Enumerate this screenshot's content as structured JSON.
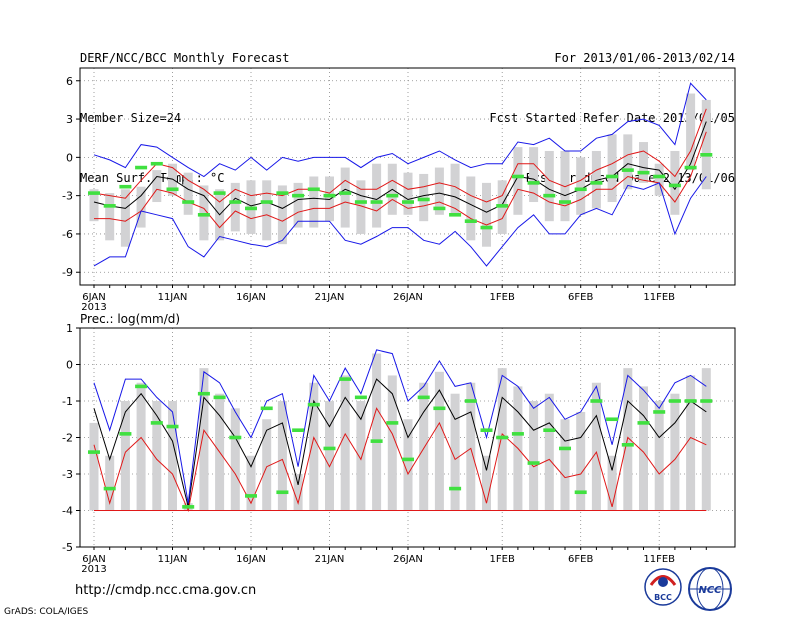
{
  "header": {
    "title": "DERF/NCC/BCC Monthly Forecast",
    "member": "Member Size=24",
    "variable": "Mean Surf. Temp.: °C",
    "period": "For 2013/01/06-2013/02/14",
    "started": "Fcst Started Refer Date 2013/01/05",
    "produced": "Fcst Produced Date 2013/01/06"
  },
  "footer": {
    "url": "http://cmdp.ncc.cma.gov.cn",
    "credit": "GrADS: COLA/IGES",
    "logo_bcc_text": "BCC",
    "logo_ncc_text": "NCC"
  },
  "colors": {
    "bar": "#d2d2d4",
    "green": "#40e040",
    "black": "#000000",
    "red": "#e01818",
    "blue": "#1818e8",
    "grid": "#888888"
  },
  "chart_data": [
    {
      "type": "box",
      "title": "Mean Surf. Temp.: °C",
      "xlabel": "",
      "ylabel": "°C",
      "ylim": [
        -10,
        7
      ],
      "yticks": [
        6,
        3,
        0,
        -3,
        -6,
        -9
      ],
      "x_start_label": "6JAN",
      "x_start_year": "2013",
      "xtick_labels": [
        {
          "day": 1,
          "label": "6JAN"
        },
        {
          "day": 6,
          "label": "11JAN"
        },
        {
          "day": 11,
          "label": "16JAN"
        },
        {
          "day": 16,
          "label": "21JAN"
        },
        {
          "day": 21,
          "label": "26JAN"
        },
        {
          "day": 27,
          "label": "1FEB"
        },
        {
          "day": 32,
          "label": "6FEB"
        },
        {
          "day": 37,
          "label": "11FEB"
        }
      ],
      "days": 40,
      "bar_top": [
        -2.5,
        -2.8,
        -2.5,
        -2.3,
        -1.0,
        -0.5,
        -1.2,
        -2.2,
        -2.5,
        -2.0,
        -1.8,
        -1.8,
        -2.2,
        -2.0,
        -1.5,
        -1.5,
        -0.8,
        -1.8,
        -0.5,
        -0.5,
        -1.2,
        -1.3,
        -0.8,
        -0.5,
        -1.5,
        -2.0,
        -1.8,
        0.8,
        0.8,
        0.5,
        0.5,
        0.0,
        0.5,
        1.8,
        1.8,
        1.2,
        -0.5,
        0.5,
        5.0,
        4.5
      ],
      "bar_bottom": [
        -5.0,
        -6.5,
        -7.0,
        -5.5,
        -3.5,
        -3.0,
        -4.5,
        -6.5,
        -6.5,
        -5.8,
        -6.0,
        -6.5,
        -6.8,
        -5.5,
        -5.5,
        -5.0,
        -5.5,
        -6.0,
        -5.5,
        -4.5,
        -4.5,
        -5.0,
        -4.5,
        -4.5,
        -6.5,
        -7.0,
        -6.0,
        -4.5,
        -3.5,
        -5.0,
        -5.0,
        -4.5,
        -4.0,
        -3.5,
        -2.5,
        -2.0,
        -3.0,
        -4.5,
        -1.0,
        -2.5
      ],
      "series": [
        {
          "name": "ensemble mean",
          "color": "black",
          "values": [
            -3.5,
            -3.8,
            -4.0,
            -3.0,
            -1.5,
            -1.7,
            -2.5,
            -3.0,
            -4.5,
            -3.2,
            -3.8,
            -3.5,
            -4.0,
            -3.3,
            -3.2,
            -3.3,
            -2.5,
            -3.0,
            -3.3,
            -2.5,
            -3.3,
            -3.0,
            -2.8,
            -3.1,
            -3.7,
            -4.3,
            -3.7,
            -1.5,
            -1.7,
            -2.5,
            -3.0,
            -2.5,
            -1.8,
            -1.5,
            -0.5,
            -0.8,
            -1.0,
            -2.5,
            -0.5,
            2.8
          ]
        },
        {
          "name": "upper spread",
          "color": "red",
          "values": [
            -2.8,
            -3.0,
            -3.2,
            -1.8,
            -0.5,
            -0.8,
            -1.8,
            -2.5,
            -3.5,
            -2.5,
            -3.0,
            -2.8,
            -3.0,
            -2.5,
            -2.5,
            -2.8,
            -1.8,
            -2.5,
            -2.5,
            -1.8,
            -2.5,
            -2.3,
            -2.0,
            -2.3,
            -3.0,
            -3.5,
            -3.0,
            -0.5,
            -0.5,
            -1.8,
            -2.3,
            -1.8,
            -1.0,
            -0.5,
            0.2,
            0.5,
            -0.3,
            -1.5,
            0.5,
            3.8
          ]
        },
        {
          "name": "lower spread",
          "color": "red",
          "values": [
            -4.8,
            -4.8,
            -5.0,
            -4.2,
            -2.5,
            -2.8,
            -3.5,
            -4.0,
            -5.5,
            -4.2,
            -4.8,
            -4.5,
            -5.0,
            -4.3,
            -4.0,
            -4.0,
            -3.5,
            -3.8,
            -4.2,
            -3.3,
            -4.0,
            -3.8,
            -3.5,
            -4.0,
            -4.8,
            -5.3,
            -4.8,
            -2.5,
            -2.8,
            -3.5,
            -3.8,
            -3.3,
            -2.5,
            -2.5,
            -1.5,
            -1.8,
            -2.0,
            -3.5,
            -1.5,
            2.0
          ]
        },
        {
          "name": "maximum",
          "color": "blue",
          "values": [
            0.2,
            -0.2,
            -0.8,
            1.0,
            0.8,
            0.0,
            -0.8,
            -1.5,
            -0.5,
            -1.0,
            0.0,
            -1.0,
            0.0,
            -0.3,
            0.0,
            0.0,
            0.0,
            -0.8,
            0.0,
            0.3,
            -0.5,
            0.0,
            0.5,
            -0.2,
            -0.8,
            -0.5,
            -0.5,
            1.2,
            1.0,
            1.5,
            0.5,
            0.5,
            1.5,
            1.8,
            2.8,
            3.0,
            2.5,
            1.0,
            5.8,
            4.5
          ]
        },
        {
          "name": "minimum",
          "color": "blue",
          "values": [
            -8.5,
            -7.8,
            -7.8,
            -4.2,
            -4.5,
            -4.8,
            -7.0,
            -7.8,
            -6.2,
            -6.5,
            -6.8,
            -7.0,
            -6.5,
            -5.0,
            -5.0,
            -5.0,
            -6.5,
            -6.8,
            -6.2,
            -5.5,
            -5.5,
            -6.5,
            -6.8,
            -5.8,
            -7.0,
            -8.5,
            -7.0,
            -5.5,
            -4.5,
            -6.0,
            -6.0,
            -4.5,
            -4.0,
            -4.5,
            -2.2,
            -2.5,
            -2.0,
            -6.0,
            -3.2,
            -1.5
          ]
        },
        {
          "name": "observed/reference",
          "color": "green",
          "values": [
            -2.8,
            -3.8,
            -2.3,
            -0.8,
            -0.5,
            -2.5,
            -3.5,
            -4.5,
            -2.8,
            -3.5,
            -4.0,
            -3.5,
            -2.8,
            -3.0,
            -2.5,
            -3.0,
            -2.8,
            -3.5,
            -3.5,
            -3.0,
            -3.5,
            -3.3,
            -4.0,
            -4.5,
            -5.0,
            -5.5,
            -3.8,
            -1.5,
            -2.0,
            -3.0,
            -3.5,
            -2.5,
            -2.0,
            -1.5,
            -1.0,
            -1.2,
            -1.5,
            -2.2,
            -0.8,
            0.2
          ]
        }
      ]
    },
    {
      "type": "box",
      "title": "Prec.: log(mm/d)",
      "xlabel": "",
      "ylabel": "log(mm/d)",
      "ylim": [
        -5,
        1
      ],
      "yticks": [
        1,
        0,
        -1,
        -2,
        -3,
        -4,
        -5
      ],
      "x_start_label": "6JAN",
      "x_start_year": "2013",
      "xtick_labels": [
        {
          "day": 1,
          "label": "6JAN"
        },
        {
          "day": 6,
          "label": "11JAN"
        },
        {
          "day": 11,
          "label": "16JAN"
        },
        {
          "day": 16,
          "label": "21JAN"
        },
        {
          "day": 21,
          "label": "26JAN"
        },
        {
          "day": 27,
          "label": "1FEB"
        },
        {
          "day": 32,
          "label": "6FEB"
        },
        {
          "day": 37,
          "label": "11FEB"
        }
      ],
      "days": 40,
      "bar_top": [
        -1.6,
        -2.5,
        -1.0,
        -0.5,
        -1.0,
        -1.0,
        -3.8,
        -0.1,
        -0.8,
        -1.2,
        -2.5,
        -1.5,
        -1.0,
        -3.0,
        -0.5,
        -1.0,
        -0.3,
        -1.0,
        0.3,
        -0.3,
        -1.5,
        -0.5,
        -0.2,
        -0.8,
        -0.5,
        -2.5,
        -0.1,
        -0.6,
        -1.0,
        -0.8,
        -1.5,
        -1.3,
        -0.5,
        -2.5,
        -0.1,
        -0.6,
        -1.0,
        -0.8,
        -0.3,
        -0.1
      ],
      "bar_bottom": [
        -4,
        -4,
        -4,
        -4,
        -4,
        -4,
        -4,
        -4,
        -4,
        -4,
        -4,
        -4,
        -4,
        -4,
        -4,
        -4,
        -4,
        -4,
        -4,
        -4,
        -4,
        -4,
        -4,
        -4,
        -4,
        -4,
        -4,
        -4,
        -4,
        -4,
        -4,
        -4,
        -4,
        -4,
        -4,
        -4,
        -4,
        -4,
        -4,
        -4
      ],
      "series": [
        {
          "name": "ensemble mean",
          "color": "black",
          "values": [
            -1.2,
            -2.6,
            -1.3,
            -0.8,
            -1.4,
            -2.1,
            -3.9,
            -0.9,
            -1.4,
            -2.0,
            -2.8,
            -1.8,
            -1.6,
            -3.3,
            -1.0,
            -1.7,
            -0.9,
            -1.5,
            -0.4,
            -0.8,
            -2.0,
            -1.3,
            -0.7,
            -1.5,
            -1.3,
            -2.9,
            -0.9,
            -1.3,
            -1.8,
            -1.6,
            -2.1,
            -2.0,
            -1.4,
            -2.9,
            -1.0,
            -1.4,
            -2.0,
            -1.6,
            -1.0,
            -1.3
          ]
        },
        {
          "name": "lower spread",
          "color": "red",
          "values": [
            -2.2,
            -3.8,
            -2.4,
            -2.0,
            -2.6,
            -3.0,
            -4.0,
            -1.8,
            -2.4,
            -3.0,
            -3.8,
            -2.8,
            -2.6,
            -3.8,
            -2.0,
            -2.8,
            -1.9,
            -2.6,
            -1.2,
            -1.9,
            -3.0,
            -2.3,
            -1.6,
            -2.6,
            -2.3,
            -3.8,
            -1.9,
            -2.3,
            -2.8,
            -2.6,
            -3.1,
            -3.0,
            -2.4,
            -3.9,
            -2.0,
            -2.4,
            -3.0,
            -2.6,
            -2.0,
            -2.2
          ]
        },
        {
          "name": "maximum",
          "color": "blue",
          "values": [
            -0.5,
            -1.8,
            -0.4,
            -0.4,
            -0.9,
            -1.3,
            -3.8,
            -0.2,
            -0.5,
            -1.3,
            -2.0,
            -1.0,
            -0.8,
            -2.8,
            -0.3,
            -1.0,
            -0.1,
            -0.8,
            0.4,
            0.3,
            -1.0,
            -0.6,
            0.1,
            -0.6,
            -0.5,
            -2.0,
            -0.3,
            -0.6,
            -1.2,
            -0.9,
            -1.5,
            -1.3,
            -0.6,
            -2.2,
            -0.3,
            -0.7,
            -1.2,
            -0.5,
            -0.3,
            -0.6
          ]
        },
        {
          "name": "observed/reference",
          "color": "green",
          "values": [
            -2.4,
            -3.4,
            -1.9,
            -0.6,
            -1.6,
            -1.7,
            -3.9,
            -0.8,
            -0.9,
            -2.0,
            -3.6,
            -1.2,
            -3.5,
            -1.8,
            -1.1,
            -2.3,
            -0.4,
            -0.9,
            -2.1,
            -1.6,
            -2.6,
            -0.9,
            -1.2,
            -3.4,
            -1.0,
            -1.8,
            -2.0,
            -1.9,
            -2.7,
            -1.8,
            -2.3,
            -3.5,
            -1.0,
            -1.5,
            -2.2,
            -1.6,
            -1.3,
            -1.0,
            -1.0,
            -1.0
          ]
        }
      ]
    }
  ]
}
